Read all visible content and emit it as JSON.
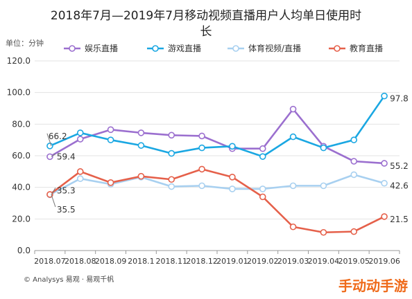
{
  "title_line1": "2018年7月—2019年7月移动视频直播用户人均单日使用时",
  "title_line2": "长",
  "unit": "单位：分钟",
  "footer": "© Analysys 易观 · 易观千帆",
  "corner_mark": "手动动手游",
  "chart_data": {
    "type": "line",
    "title": "2018年7月—2019年7月移动视频直播用户人均单日使用时长",
    "ylabel": "单位：分钟",
    "ylim": [
      0,
      120
    ],
    "yticks": [
      "0.0",
      "20.0",
      "40.0",
      "60.0",
      "80.0",
      "100.0",
      "120.0"
    ],
    "categories": [
      "2018.07",
      "2018.08",
      "2018.09",
      "2018.1",
      "2018.11",
      "2018.12",
      "2019.01",
      "2019.02",
      "2019.03",
      "2019.04",
      "2019.05",
      "2019.06"
    ],
    "legend_position": "top",
    "grid": "horizontal",
    "series": [
      {
        "name": "娱乐直播",
        "color": "#9b6fcf",
        "values": [
          59.4,
          70.5,
          76.5,
          74.5,
          73,
          72.5,
          64.5,
          64.5,
          89.5,
          66,
          56.5,
          55.2
        ]
      },
      {
        "name": "游戏直播",
        "color": "#1aa7e2",
        "values": [
          66.2,
          74.5,
          70,
          66.5,
          61.5,
          65,
          66,
          59.5,
          72,
          65,
          70,
          97.8
        ]
      },
      {
        "name": "体育视频/直播",
        "color": "#a8d0f0",
        "values": [
          35.3,
          45.5,
          42,
          46.5,
          40.5,
          41,
          39,
          39,
          41,
          41,
          48,
          42.6
        ]
      },
      {
        "name": "教育直播",
        "color": "#e5604a",
        "values": [
          35.5,
          50,
          43,
          47,
          45,
          51.5,
          46.5,
          34,
          15,
          11.5,
          12,
          21.5
        ]
      }
    ],
    "annotations": [
      {
        "series": 1,
        "index": 0,
        "text": "66.2"
      },
      {
        "series": 0,
        "index": 0,
        "text": "59.4"
      },
      {
        "series": 2,
        "index": 0,
        "text": "35.3"
      },
      {
        "series": 3,
        "index": 0,
        "text": "35.5"
      },
      {
        "series": 1,
        "index": 11,
        "text": "97.8"
      },
      {
        "series": 0,
        "index": 11,
        "text": "55.2"
      },
      {
        "series": 2,
        "index": 11,
        "text": "42.6"
      },
      {
        "series": 3,
        "index": 11,
        "text": "21.5"
      }
    ]
  }
}
